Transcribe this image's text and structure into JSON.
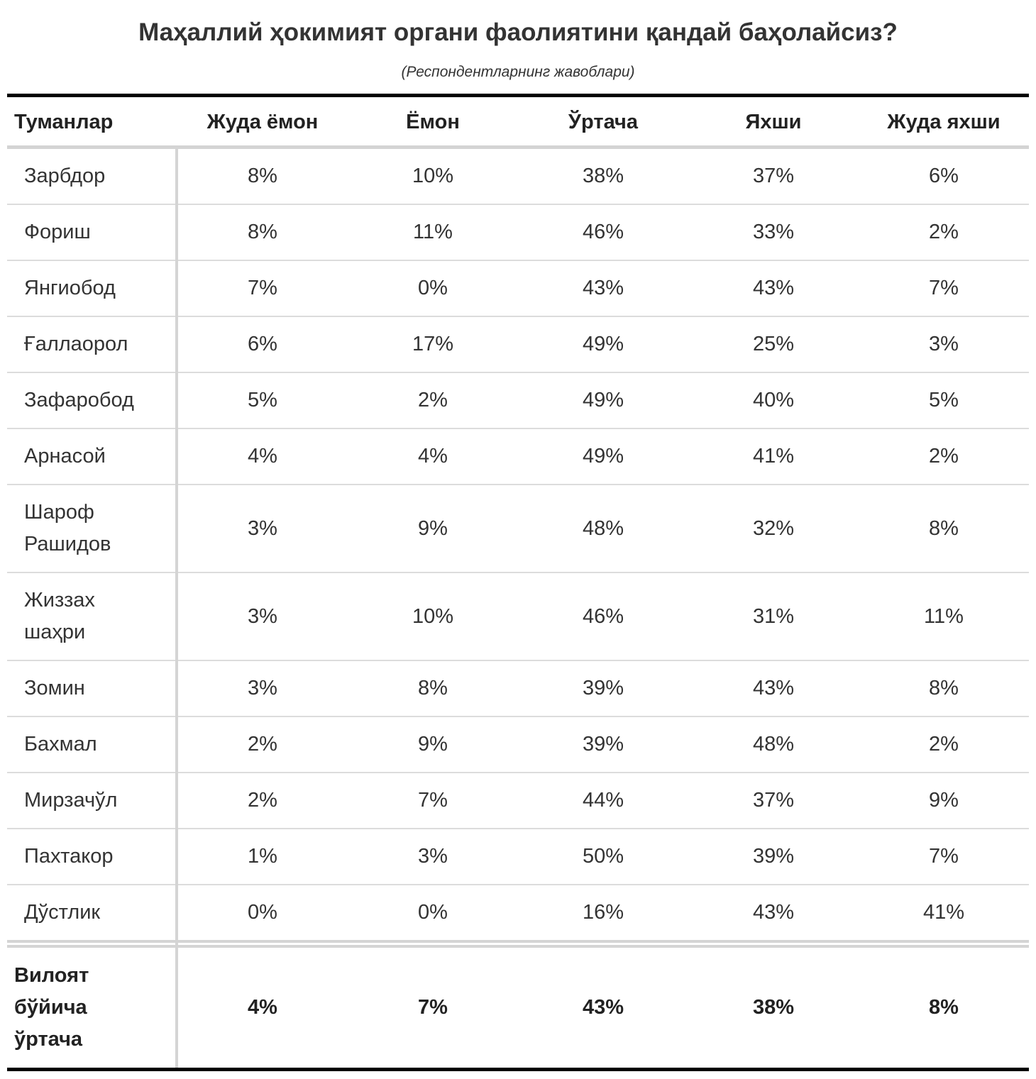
{
  "title": "Маҳаллий ҳокимият органи фаолиятини қандай баҳолайсиз?",
  "subtitle": "(Респондентларнинг жавоблари)",
  "columns": [
    "Туманлар",
    "Жуда ёмон",
    "Ёмон",
    "Ўртача",
    "Яхши",
    "Жуда яхши"
  ],
  "rows": [
    {
      "name": "Зарбдор",
      "values": [
        "8%",
        "10%",
        "38%",
        "37%",
        "6%"
      ]
    },
    {
      "name": "Фориш",
      "values": [
        "8%",
        "11%",
        "46%",
        "33%",
        "2%"
      ]
    },
    {
      "name": "Янгиобод",
      "values": [
        "7%",
        "0%",
        "43%",
        "43%",
        "7%"
      ]
    },
    {
      "name": "Ғаллаорол",
      "values": [
        "6%",
        "17%",
        "49%",
        "25%",
        "3%"
      ]
    },
    {
      "name": "Зафаробод",
      "values": [
        "5%",
        "2%",
        "49%",
        "40%",
        "5%"
      ]
    },
    {
      "name": "Арнасой",
      "values": [
        "4%",
        "4%",
        "49%",
        "41%",
        "2%"
      ]
    },
    {
      "name": "Шароф Рашидов",
      "values": [
        "3%",
        "9%",
        "48%",
        "32%",
        "8%"
      ]
    },
    {
      "name": "Жиззах шаҳри",
      "values": [
        "3%",
        "10%",
        "46%",
        "31%",
        "11%"
      ]
    },
    {
      "name": "Зомин",
      "values": [
        "3%",
        "8%",
        "39%",
        "43%",
        "8%"
      ]
    },
    {
      "name": "Бахмал",
      "values": [
        "2%",
        "9%",
        "39%",
        "48%",
        "2%"
      ]
    },
    {
      "name": "Мирзачўл",
      "values": [
        "2%",
        "7%",
        "44%",
        "37%",
        "9%"
      ]
    },
    {
      "name": "Пахтакор",
      "values": [
        "1%",
        "3%",
        "50%",
        "39%",
        "7%"
      ]
    },
    {
      "name": "Дўстлик",
      "values": [
        "0%",
        "0%",
        "16%",
        "43%",
        "41%"
      ]
    }
  ],
  "footer": {
    "name": "Вилоят бўйича ўртача",
    "values": [
      "4%",
      "7%",
      "43%",
      "38%",
      "8%"
    ]
  }
}
